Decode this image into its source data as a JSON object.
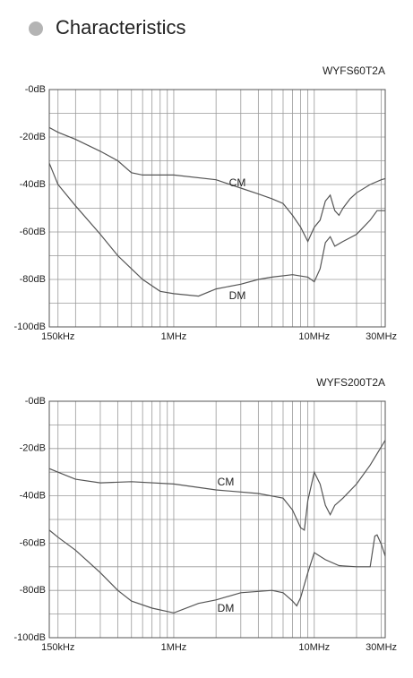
{
  "header": {
    "title": "Characteristics"
  },
  "chart_data": [
    {
      "type": "line",
      "title": "WYFS60T2A",
      "log_x": true,
      "xlim": [
        130000,
        32000000
      ],
      "ylim": [
        -100,
        0
      ],
      "xticks": [
        {
          "value": 150000,
          "label": "150kHz"
        },
        {
          "value": 1000000,
          "label": "1MHz"
        },
        {
          "value": 10000000,
          "label": "10MHz"
        },
        {
          "value": 30000000,
          "label": "30MHz"
        }
      ],
      "yticks": [
        {
          "value": 0,
          "label": "-0dB"
        },
        {
          "value": -20,
          "label": "-20dB"
        },
        {
          "value": -40,
          "label": "-40dB"
        },
        {
          "value": -60,
          "label": "-60dB"
        },
        {
          "value": -80,
          "label": "-80dB"
        },
        {
          "value": -100,
          "label": "-100dB"
        }
      ],
      "x_grid": [
        200000,
        300000,
        400000,
        500000,
        600000,
        700000,
        800000,
        900000,
        2000000,
        3000000,
        4000000,
        5000000,
        6000000,
        7000000,
        8000000,
        9000000,
        20000000
      ],
      "y_grid": [
        -10,
        -30,
        -50,
        -70,
        -90
      ],
      "grid": true,
      "series": [
        {
          "name": "CM",
          "color": "#555555",
          "x": [
            130000,
            150000,
            200000,
            300000,
            400000,
            500000,
            600000,
            1000000,
            2000000,
            3000000,
            4000000,
            5000000,
            6000000,
            7000000,
            8000000,
            9000000,
            10000000,
            11000000,
            12000000,
            13000000,
            14000000,
            15000000,
            16000000,
            18000000,
            20000000,
            25000000,
            30000000,
            32000000
          ],
          "values": [
            -16,
            -18,
            -21,
            -26,
            -30,
            -35,
            -36,
            -36,
            -38,
            -41.5,
            -44,
            -46,
            -48,
            -53,
            -58,
            -64,
            -58,
            -55,
            -47,
            -44.5,
            -51,
            -53,
            -50,
            -46,
            -43.5,
            -40,
            -38,
            -37.5
          ]
        },
        {
          "name": "DM",
          "color": "#555555",
          "x": [
            130000,
            150000,
            200000,
            300000,
            400000,
            500000,
            600000,
            800000,
            1000000,
            1500000,
            2000000,
            3000000,
            4000000,
            5000000,
            7000000,
            9000000,
            10000000,
            11000000,
            12000000,
            13000000,
            14000000,
            16000000,
            20000000,
            25000000,
            28000000,
            32000000
          ],
          "values": [
            -31,
            -40,
            -49,
            -61,
            -70,
            -75.5,
            -80,
            -85,
            -86,
            -87,
            -84,
            -82,
            -80,
            -79,
            -78,
            -79,
            -81,
            -75.5,
            -64.5,
            -62,
            -66,
            -64,
            -61,
            -55,
            -51,
            -51
          ]
        }
      ]
    },
    {
      "type": "line",
      "title": "WYFS200T2A",
      "log_x": true,
      "xlim": [
        130000,
        32000000
      ],
      "ylim": [
        -100,
        0
      ],
      "xticks": [
        {
          "value": 150000,
          "label": "150kHz"
        },
        {
          "value": 1000000,
          "label": "1MHz"
        },
        {
          "value": 10000000,
          "label": "10MHz"
        },
        {
          "value": 30000000,
          "label": "30MHz"
        }
      ],
      "yticks": [
        {
          "value": 0,
          "label": "-0dB"
        },
        {
          "value": -20,
          "label": "-20dB"
        },
        {
          "value": -40,
          "label": "-40dB"
        },
        {
          "value": -60,
          "label": "-60dB"
        },
        {
          "value": -80,
          "label": "-80dB"
        },
        {
          "value": -100,
          "label": "-100dB"
        }
      ],
      "x_grid": [
        200000,
        300000,
        400000,
        500000,
        600000,
        700000,
        800000,
        900000,
        2000000,
        3000000,
        4000000,
        5000000,
        6000000,
        7000000,
        8000000,
        9000000,
        20000000
      ],
      "y_grid": [
        -10,
        -30,
        -50,
        -70,
        -90
      ],
      "grid": true,
      "series": [
        {
          "name": "CM",
          "color": "#555555",
          "x": [
            130000,
            150000,
            200000,
            300000,
            500000,
            1000000,
            2000000,
            4000000,
            6000000,
            7000000,
            8000000,
            8500000,
            9000000,
            10000000,
            11000000,
            12000000,
            13000000,
            14000000,
            16000000,
            20000000,
            25000000,
            32000000
          ],
          "values": [
            -28.5,
            -30,
            -33,
            -34.5,
            -34,
            -35,
            -37.5,
            -39,
            -41,
            -46,
            -53.5,
            -54.5,
            -42,
            -30,
            -35,
            -44,
            -48,
            -44,
            -41,
            -35,
            -27,
            -16.5
          ]
        },
        {
          "name": "DM",
          "color": "#555555",
          "x": [
            130000,
            150000,
            200000,
            300000,
            400000,
            500000,
            700000,
            1000000,
            1500000,
            2000000,
            3000000,
            5000000,
            6000000,
            7000000,
            7500000,
            8000000,
            9000000,
            10000000,
            12000000,
            15000000,
            20000000,
            25000000,
            27000000,
            28000000,
            30000000,
            32000000
          ],
          "values": [
            -54.5,
            -57.5,
            -63,
            -72.5,
            -80,
            -84.5,
            -87.5,
            -89.5,
            -85.5,
            -84,
            -81,
            -80,
            -81,
            -84.5,
            -86.5,
            -83,
            -72.5,
            -64,
            -67,
            -69.5,
            -70,
            -70,
            -57,
            -56.5,
            -60.5,
            -65.5
          ]
        }
      ]
    }
  ]
}
